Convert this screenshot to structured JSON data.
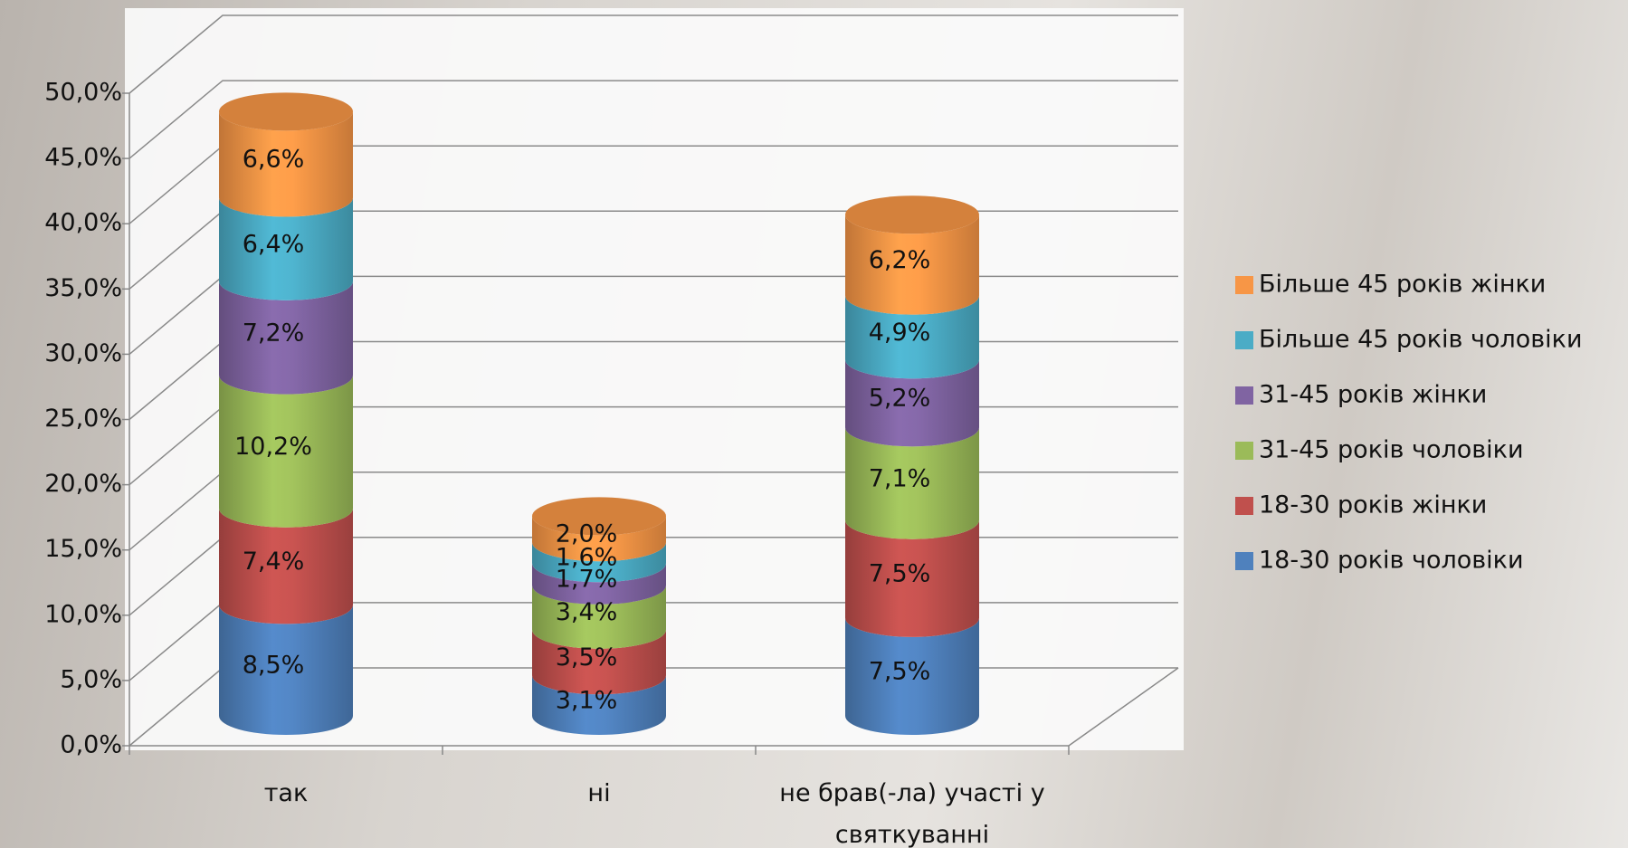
{
  "chart_data": {
    "type": "bar3d_stacked_cylinder",
    "categories": [
      "так",
      "ні",
      "не брав(-ла) участі у святкуванні"
    ],
    "series": [
      {
        "name": "18-30 років чоловіки",
        "color": "#4f81bd",
        "values": [
          8.5,
          3.1,
          7.5
        ],
        "value_labels": [
          "8,5%",
          "3,1%",
          "7,5%"
        ]
      },
      {
        "name": "18-30 років жінки",
        "color": "#c0504d",
        "values": [
          7.4,
          3.5,
          7.5
        ],
        "value_labels": [
          "7,4%",
          "3,5%",
          "7,5%"
        ]
      },
      {
        "name": "31-45 років чоловіки",
        "color": "#9bbb59",
        "values": [
          10.2,
          3.4,
          7.1
        ],
        "value_labels": [
          "10,2%",
          "3,4%",
          "7,1%"
        ]
      },
      {
        "name": "31-45 років жінки",
        "color": "#8064a2",
        "values": [
          7.2,
          1.7,
          5.2
        ],
        "value_labels": [
          "7,2%",
          "1,7%",
          "5,2%"
        ]
      },
      {
        "name": "Більше 45 років чоловіки",
        "color": "#4bacc6",
        "values": [
          6.4,
          1.6,
          4.9
        ],
        "value_labels": [
          "6,4%",
          "1,6%",
          "4,9%"
        ]
      },
      {
        "name": "Більше 45 років жінки",
        "color": "#f79646",
        "values": [
          6.6,
          2.0,
          6.2
        ],
        "value_labels": [
          "6,6%",
          "2,0%",
          "6,2%"
        ]
      }
    ],
    "ylim": [
      0,
      50
    ],
    "yticks": [
      {
        "value": 0,
        "label": "0,0%"
      },
      {
        "value": 5,
        "label": "5,0%"
      },
      {
        "value": 10,
        "label": "10,0%"
      },
      {
        "value": 15,
        "label": "15,0%"
      },
      {
        "value": 20,
        "label": "20,0%"
      },
      {
        "value": 25,
        "label": "25,0%"
      },
      {
        "value": 30,
        "label": "30,0%"
      },
      {
        "value": 35,
        "label": "35,0%"
      },
      {
        "value": 40,
        "label": "40,0%"
      },
      {
        "value": 45,
        "label": "45,0%"
      },
      {
        "value": 50,
        "label": "50,0%"
      }
    ],
    "grid": true,
    "legend": "right"
  }
}
